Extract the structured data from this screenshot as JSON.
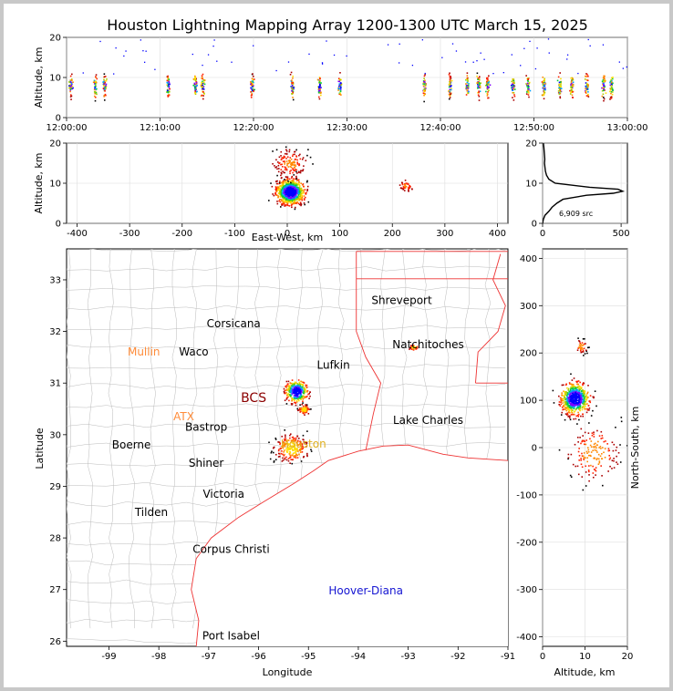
{
  "chart_data": {
    "type": "scatter",
    "title": "Houston Lightning Mapping Array 1200-1300 UTC March 15, 2025",
    "panels": {
      "time_altitude": {
        "ylabel": "Altitude, km",
        "xlim": [
          "12:00:00",
          "13:00:00"
        ],
        "ylim": [
          0,
          20
        ],
        "xticks": [
          "12:00:00",
          "12:10:00",
          "12:20:00",
          "12:30:00",
          "12:40:00",
          "12:50:00",
          "13:00:00"
        ],
        "yticks": [
          "0",
          "10",
          "20"
        ],
        "bursts_minutes": [
          0.4,
          3.0,
          4.0,
          10.8,
          13.7,
          14.5,
          19.8,
          24.1,
          27.0,
          29.2,
          38.2,
          41.0,
          42.8,
          44.0,
          45.0,
          47.7,
          49.3,
          51.0,
          52.7,
          54.0,
          55.6,
          57.4,
          58.2
        ]
      },
      "ew_altitude": {
        "xlabel": "East-West, km",
        "ylabel": "Altitude, km",
        "xlim": [
          -420,
          420
        ],
        "ylim": [
          0,
          20
        ],
        "xticks": [
          "-400",
          "-300",
          "-200",
          "-100",
          "0",
          "100",
          "200",
          "300",
          "400"
        ],
        "yticks": [
          "0",
          "10",
          "20"
        ],
        "clusters": [
          {
            "x": 5,
            "y": 8,
            "spread_x": 22,
            "spread_y": 2.5,
            "n": 900
          },
          {
            "x": 5,
            "y": 15,
            "spread_x": 28,
            "spread_y": 3,
            "n": 150
          },
          {
            "x": 225,
            "y": 9.5,
            "spread_x": 12,
            "spread_y": 1.2,
            "n": 40
          }
        ]
      },
      "altitude_histogram": {
        "xticks": [
          "0",
          "500"
        ],
        "yticks": [
          "0",
          "10",
          "20"
        ],
        "xlim": [
          0,
          540
        ],
        "ylim": [
          0,
          20
        ],
        "annotation": "6,909 src",
        "profile": [
          {
            "alt": 0,
            "count": 0
          },
          {
            "alt": 1,
            "count": 5
          },
          {
            "alt": 2,
            "count": 15
          },
          {
            "alt": 3,
            "count": 40
          },
          {
            "alt": 4,
            "count": 60
          },
          {
            "alt": 5,
            "count": 90
          },
          {
            "alt": 6,
            "count": 130
          },
          {
            "alt": 7,
            "count": 280
          },
          {
            "alt": 7.5,
            "count": 450
          },
          {
            "alt": 8,
            "count": 510
          },
          {
            "alt": 8.5,
            "count": 480
          },
          {
            "alt": 9,
            "count": 300
          },
          {
            "alt": 10,
            "count": 80
          },
          {
            "alt": 11,
            "count": 40
          },
          {
            "alt": 12,
            "count": 25
          },
          {
            "alt": 13,
            "count": 18
          },
          {
            "alt": 14,
            "count": 15
          },
          {
            "alt": 15,
            "count": 12
          },
          {
            "alt": 16,
            "count": 14
          },
          {
            "alt": 17,
            "count": 12
          },
          {
            "alt": 18,
            "count": 10
          },
          {
            "alt": 19,
            "count": 8
          },
          {
            "alt": 20,
            "count": 5
          }
        ]
      },
      "map": {
        "xlabel": "Longitude",
        "ylabel": "Latitude",
        "xlim": [
          -99.85,
          -91
        ],
        "ylim": [
          25.9,
          33.6
        ],
        "xticks": [
          "-99",
          "-98",
          "-97",
          "-96",
          "-95",
          "-94",
          "-93",
          "-92",
          "-91"
        ],
        "yticks": [
          "26",
          "27",
          "28",
          "29",
          "30",
          "31",
          "32",
          "33"
        ],
        "cities": [
          {
            "name": "Shreveport",
            "lon": -93.13,
            "lat": 32.6,
            "color": "#000000"
          },
          {
            "name": "Corsicana",
            "lon": -96.5,
            "lat": 32.15,
            "color": "#000000"
          },
          {
            "name": "Mullin",
            "lon": -98.3,
            "lat": 31.6,
            "color": "#ff8c3a"
          },
          {
            "name": "Waco",
            "lon": -97.3,
            "lat": 31.6,
            "color": "#000000"
          },
          {
            "name": "Natchitoches",
            "lon": -92.6,
            "lat": 31.75,
            "color": "#000000"
          },
          {
            "name": "Lufkin",
            "lon": -94.5,
            "lat": 31.35,
            "color": "#000000"
          },
          {
            "name": "BCS",
            "lon": -96.1,
            "lat": 30.7,
            "color": "#8b0000"
          },
          {
            "name": "ATX",
            "lon": -97.5,
            "lat": 30.35,
            "color": "#ff8c3a"
          },
          {
            "name": "Bastrop",
            "lon": -97.05,
            "lat": 30.15,
            "color": "#000000"
          },
          {
            "name": "Lake Charles",
            "lon": -92.6,
            "lat": 30.28,
            "color": "#000000"
          },
          {
            "name": "Boerne",
            "lon": -98.55,
            "lat": 29.8,
            "color": "#000000"
          },
          {
            "name": "Houston",
            "lon": -95.1,
            "lat": 29.82,
            "color": "#e0b020"
          },
          {
            "name": "Shiner",
            "lon": -97.05,
            "lat": 29.45,
            "color": "#000000"
          },
          {
            "name": "Victoria",
            "lon": -96.7,
            "lat": 28.85,
            "color": "#000000"
          },
          {
            "name": "Tilden",
            "lon": -98.15,
            "lat": 28.5,
            "color": "#000000"
          },
          {
            "name": "Corpus Christi",
            "lon": -96.55,
            "lat": 27.78,
            "color": "#000000"
          },
          {
            "name": "Hoover-Diana",
            "lon": -93.85,
            "lat": 26.98,
            "color": "#1414d2"
          },
          {
            "name": "Port Isabel",
            "lon": -96.55,
            "lat": 26.1,
            "color": "#000000"
          }
        ],
        "clusters": [
          {
            "lon": -95.25,
            "lat": 30.85,
            "spread_lon": 0.18,
            "spread_lat": 0.18,
            "n": 350
          },
          {
            "lon": -95.1,
            "lat": 30.5,
            "spread_lon": 0.1,
            "spread_lat": 0.08,
            "n": 80
          },
          {
            "lon": -95.35,
            "lat": 29.75,
            "spread_lon": 0.28,
            "spread_lat": 0.22,
            "n": 220
          },
          {
            "lon": -92.9,
            "lat": 31.7,
            "spread_lon": 0.08,
            "spread_lat": 0.05,
            "n": 30
          }
        ]
      },
      "ns_altitude": {
        "xlabel": "Altitude, km",
        "ylabel": "North-South, km",
        "xlim": [
          0,
          20
        ],
        "ylim": [
          -420,
          420
        ],
        "xticks": [
          "0",
          "10",
          "20"
        ],
        "yticks": [
          "-400",
          "-300",
          "-200",
          "-100",
          "0",
          "100",
          "200",
          "300",
          "400"
        ],
        "clusters": [
          {
            "x": 7.5,
            "y": 105,
            "spread_x": 2.8,
            "spread_y": 28,
            "n": 650
          },
          {
            "x": 9,
            "y": 215,
            "spread_x": 1.2,
            "spread_y": 12,
            "n": 40
          },
          {
            "x": 12,
            "y": -10,
            "spread_x": 5,
            "spread_y": 50,
            "n": 160
          }
        ]
      }
    }
  }
}
